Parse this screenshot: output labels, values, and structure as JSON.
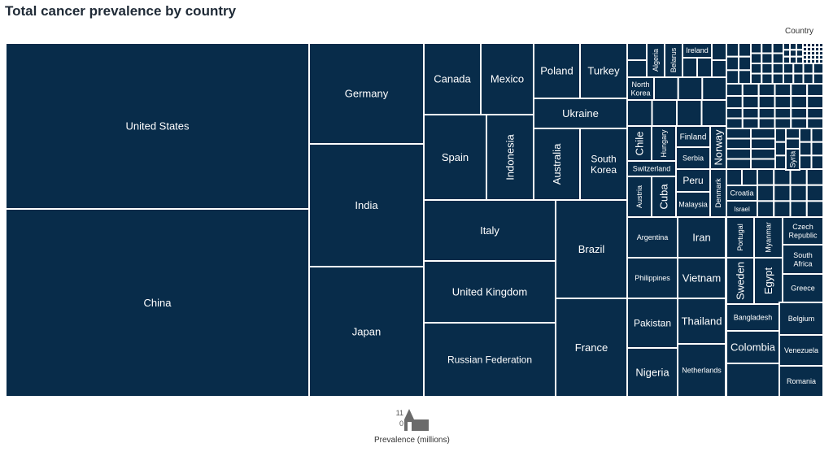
{
  "chart_data": {
    "type": "treemap",
    "title": "Total cancer prevalence by country",
    "legend_title": "Country",
    "size_legend": {
      "label": "Prevalence (millions)",
      "max_label": "11",
      "min_label": "0"
    },
    "fill_color": "#082c4a",
    "border_color": "#ffffff",
    "labels": [
      "United States",
      "China",
      "Germany",
      "India",
      "Japan",
      "Canada",
      "Mexico",
      "Poland",
      "Turkey",
      "Ukraine",
      "Spain",
      "Indonesia",
      "Australia",
      "South Korea",
      "Italy",
      "Brazil",
      "United Kingdom",
      "Russian Federation",
      "France",
      "Algeria",
      "Belarus",
      "Ireland",
      "North Korea",
      "Chile",
      "Hungary",
      "Finland",
      "Norway",
      "Serbia",
      "Switzerland",
      "Peru",
      "Austria",
      "Cuba",
      "Malaysia",
      "Denmark",
      "Croatia",
      "Israel",
      "Syria",
      "Argentina",
      "Iran",
      "Portugal",
      "Myanmar",
      "Czech Republic",
      "South Africa",
      "Philippines",
      "Vietnam",
      "Sweden",
      "Egypt",
      "Greece",
      "Pakistan",
      "Thailand",
      "Bangladesh",
      "Belgium",
      "Colombia",
      "Venezuela",
      "Nigeria",
      "Netherlands",
      "Romania"
    ]
  }
}
